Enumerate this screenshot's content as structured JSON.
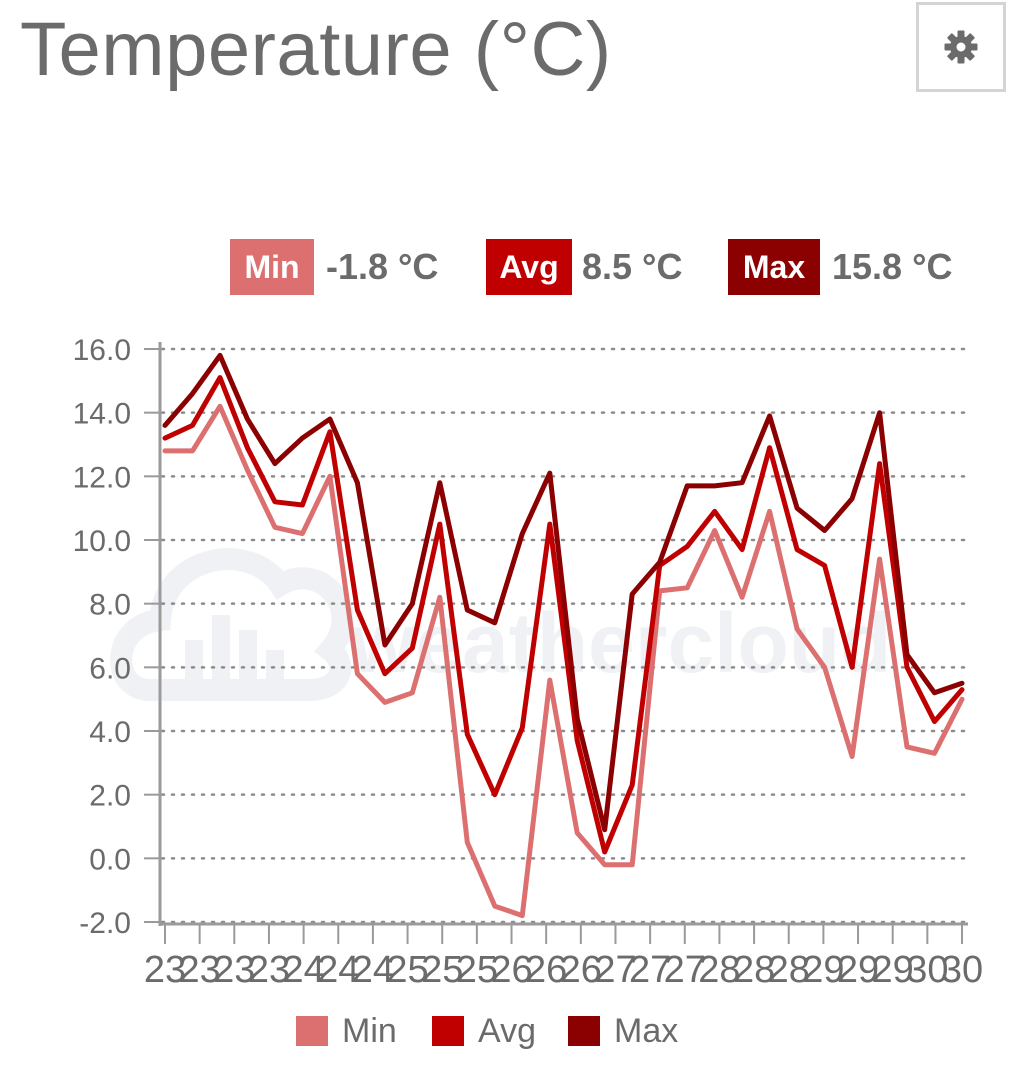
{
  "header": {
    "title": "Temperature (°C)",
    "settings_icon": "gear-icon"
  },
  "stats": [
    {
      "label": "Min",
      "value": "-1.8 °C",
      "color": "#dc7070"
    },
    {
      "label": "Avg",
      "value": "8.5 °C",
      "color": "#c00000"
    },
    {
      "label": "Max",
      "value": "15.8 °C",
      "color": "#8b0000"
    }
  ],
  "watermark": {
    "text": "weathercloud"
  },
  "chart_data": {
    "type": "line",
    "title": "Temperature (°C)",
    "xlabel": "",
    "ylabel": "",
    "ylim": [
      -2,
      16
    ],
    "yticks": [
      "-2.0",
      "0.0",
      "2.0",
      "4.0",
      "6.0",
      "8.0",
      "10.0",
      "12.0",
      "14.0",
      "16.0"
    ],
    "xticks": [
      "23",
      "23",
      "23",
      "23",
      "24",
      "24",
      "24",
      "25",
      "25",
      "25",
      "26",
      "26",
      "26",
      "27",
      "27",
      "27",
      "28",
      "28",
      "28",
      "29",
      "29",
      "29",
      "30",
      "30"
    ],
    "grid": true,
    "legend": "bottom",
    "series": [
      {
        "name": "Min",
        "color": "#dc7070",
        "values": [
          12.8,
          12.8,
          14.2,
          12.2,
          10.4,
          10.2,
          12.0,
          5.8,
          4.9,
          5.2,
          8.2,
          0.5,
          -1.5,
          -1.8,
          5.6,
          0.8,
          -0.2,
          -0.2,
          8.4,
          8.5,
          10.3,
          8.2,
          10.9,
          7.2,
          6.0,
          3.2,
          9.4,
          3.5,
          3.3,
          5.0
        ]
      },
      {
        "name": "Avg",
        "color": "#c00000",
        "values": [
          13.2,
          13.6,
          15.1,
          12.9,
          11.2,
          11.1,
          13.4,
          7.8,
          5.8,
          6.6,
          10.5,
          3.9,
          2.0,
          4.1,
          10.5,
          3.7,
          0.2,
          2.3,
          9.2,
          9.8,
          10.9,
          9.7,
          12.9,
          9.7,
          9.2,
          6.0,
          12.4,
          6.0,
          4.3,
          5.3
        ]
      },
      {
        "name": "Max",
        "color": "#8b0000",
        "values": [
          13.6,
          14.6,
          15.8,
          13.8,
          12.4,
          13.2,
          13.8,
          11.8,
          6.7,
          8.0,
          11.8,
          7.8,
          7.4,
          10.2,
          12.1,
          4.4,
          0.9,
          8.3,
          9.3,
          11.7,
          11.7,
          11.8,
          13.9,
          11.0,
          10.3,
          11.3,
          14.0,
          6.4,
          5.2,
          5.5
        ]
      }
    ]
  }
}
